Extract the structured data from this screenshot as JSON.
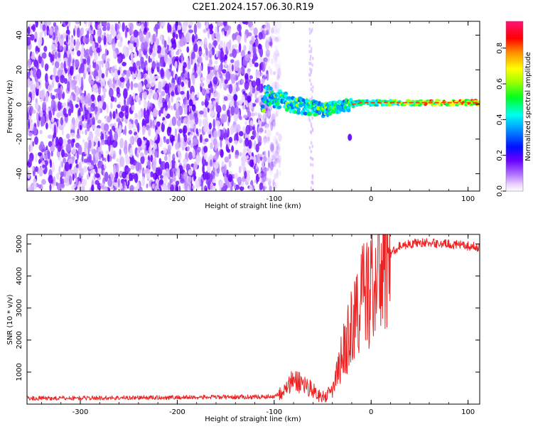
{
  "title": "C2E1.2024.157.06.30.R19",
  "chart_data": [
    {
      "type": "heatmap",
      "xlabel": "Height of straight line (km)",
      "ylabel": "Frequency (Hz)",
      "xlim": [
        -355,
        112
      ],
      "ylim": [
        -50,
        48
      ],
      "xticks": [
        -300,
        -200,
        -100,
        0,
        100
      ],
      "yticks": [
        -40,
        -20,
        0,
        20,
        40
      ],
      "noise_region_x": [
        -355,
        -100
      ],
      "signal_trace": [
        {
          "x": -110,
          "y": 6
        },
        {
          "x": -100,
          "y": 4
        },
        {
          "x": -90,
          "y": 2
        },
        {
          "x": -80,
          "y": 0
        },
        {
          "x": -70,
          "y": -1
        },
        {
          "x": -60,
          "y": -2
        },
        {
          "x": -50,
          "y": -3
        },
        {
          "x": -40,
          "y": -2
        },
        {
          "x": -30,
          "y": -1
        },
        {
          "x": -20,
          "y": 0
        },
        {
          "x": -10,
          "y": 1
        },
        {
          "x": 0,
          "y": 1
        },
        {
          "x": 20,
          "y": 1
        },
        {
          "x": 50,
          "y": 1
        },
        {
          "x": 80,
          "y": 1
        },
        {
          "x": 112,
          "y": 1
        }
      ],
      "colorbar": {
        "label": "Normalized spectral amplitude",
        "range": [
          0,
          0.95
        ],
        "ticks": [
          0.0,
          0.2,
          0.4,
          0.6,
          0.8
        ],
        "tick_labels": [
          "0.0",
          "0.2",
          "0.4",
          "0.6",
          "0.8"
        ]
      },
      "colors": [
        "#ffffff",
        "#e6ccff",
        "#a040ff",
        "#6600ff",
        "#0000ff",
        "#00ffff",
        "#00ff00",
        "#ffff00",
        "#ff0000",
        "#ff0066"
      ]
    },
    {
      "type": "line",
      "xlabel": "Height of straight line (km)",
      "ylabel": "SNR (10 * v/v)",
      "xlim": [
        -355,
        112
      ],
      "ylim": [
        0,
        5300
      ],
      "xticks": [
        -300,
        -200,
        -100,
        0,
        100
      ],
      "yticks": [
        1000,
        2000,
        3000,
        4000,
        5000
      ],
      "series": [
        {
          "color": "#ee2222",
          "points": [
            {
              "x": -355,
              "y": 180
            },
            {
              "x": -300,
              "y": 190
            },
            {
              "x": -250,
              "y": 200
            },
            {
              "x": -200,
              "y": 210
            },
            {
              "x": -150,
              "y": 220
            },
            {
              "x": -110,
              "y": 230
            },
            {
              "x": -100,
              "y": 250
            },
            {
              "x": -90,
              "y": 400
            },
            {
              "x": -80,
              "y": 750
            },
            {
              "x": -70,
              "y": 650
            },
            {
              "x": -60,
              "y": 450
            },
            {
              "x": -50,
              "y": 180
            },
            {
              "x": -40,
              "y": 400
            },
            {
              "x": -30,
              "y": 1500
            },
            {
              "x": -20,
              "y": 2400
            },
            {
              "x": -10,
              "y": 3300
            },
            {
              "x": 0,
              "y": 3700
            },
            {
              "x": 10,
              "y": 4300
            },
            {
              "x": 20,
              "y": 4700
            },
            {
              "x": 30,
              "y": 4950
            },
            {
              "x": 50,
              "y": 5050
            },
            {
              "x": 80,
              "y": 5000
            },
            {
              "x": 112,
              "y": 4900
            }
          ]
        }
      ]
    }
  ]
}
